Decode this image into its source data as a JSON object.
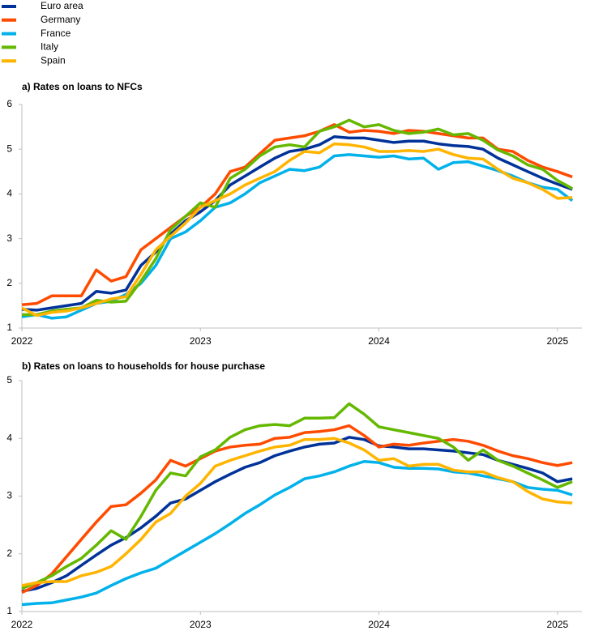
{
  "chart_data": [
    {
      "type": "line",
      "title": "a) Rates on loans to NFCs",
      "x": [
        2022,
        2022.083,
        2022.167,
        2022.25,
        2022.333,
        2022.417,
        2022.5,
        2022.583,
        2022.667,
        2022.75,
        2022.833,
        2022.917,
        2023,
        2023.083,
        2023.167,
        2023.25,
        2023.333,
        2023.417,
        2023.5,
        2023.583,
        2023.667,
        2023.75,
        2023.833,
        2023.917,
        2024,
        2024.083,
        2024.167,
        2024.25,
        2024.333,
        2024.417,
        2024.5,
        2024.583,
        2024.667,
        2024.75,
        2024.833,
        2024.917,
        2025,
        2025.083
      ],
      "xlim": [
        2022,
        2025.137
      ],
      "xticks": [
        2022,
        2023,
        2024,
        2025
      ],
      "ylim": [
        1,
        6
      ],
      "yticks": [
        1,
        2,
        3,
        4,
        5,
        6
      ],
      "series": [
        {
          "name": "Euro area",
          "color": "#003299",
          "values": [
            1.42,
            1.4,
            1.45,
            1.5,
            1.55,
            1.82,
            1.78,
            1.85,
            2.4,
            2.7,
            3.1,
            3.4,
            3.6,
            3.85,
            4.2,
            4.4,
            4.6,
            4.8,
            4.95,
            5.0,
            5.1,
            5.28,
            5.25,
            5.25,
            5.2,
            5.15,
            5.18,
            5.18,
            5.12,
            5.08,
            5.06,
            5.0,
            4.8,
            4.65,
            4.5,
            4.35,
            4.22,
            4.1
          ]
        },
        {
          "name": "Germany",
          "color": "#ff4b00",
          "values": [
            1.52,
            1.55,
            1.72,
            1.72,
            1.72,
            2.3,
            2.05,
            2.15,
            2.75,
            3.0,
            3.25,
            3.5,
            3.7,
            4.0,
            4.5,
            4.6,
            4.9,
            5.2,
            5.25,
            5.3,
            5.4,
            5.55,
            5.38,
            5.42,
            5.4,
            5.35,
            5.42,
            5.4,
            5.35,
            5.3,
            5.25,
            5.25,
            5.0,
            4.95,
            4.75,
            4.6,
            4.5,
            4.38
          ]
        },
        {
          "name": "France",
          "color": "#00b1ea",
          "values": [
            1.25,
            1.3,
            1.22,
            1.25,
            1.4,
            1.55,
            1.6,
            1.75,
            2.0,
            2.4,
            3.0,
            3.15,
            3.4,
            3.7,
            3.8,
            4.0,
            4.25,
            4.4,
            4.55,
            4.52,
            4.6,
            4.85,
            4.88,
            4.85,
            4.82,
            4.85,
            4.78,
            4.8,
            4.55,
            4.7,
            4.72,
            4.62,
            4.52,
            4.4,
            4.25,
            4.15,
            4.1,
            3.85
          ]
        },
        {
          "name": "Italy",
          "color": "#65b800",
          "values": [
            1.3,
            1.3,
            1.38,
            1.42,
            1.45,
            1.62,
            1.58,
            1.6,
            2.05,
            2.55,
            3.2,
            3.5,
            3.8,
            3.7,
            4.35,
            4.55,
            4.85,
            5.05,
            5.1,
            5.05,
            5.4,
            5.5,
            5.65,
            5.5,
            5.55,
            5.42,
            5.35,
            5.38,
            5.45,
            5.32,
            5.35,
            5.2,
            4.98,
            4.85,
            4.65,
            4.55,
            4.3,
            4.12
          ]
        },
        {
          "name": "Spain",
          "color": "#ffb400",
          "values": [
            1.45,
            1.28,
            1.35,
            1.38,
            1.45,
            1.55,
            1.65,
            1.7,
            2.2,
            2.75,
            3.05,
            3.35,
            3.7,
            3.85,
            4.0,
            4.2,
            4.35,
            4.5,
            4.75,
            4.95,
            4.92,
            5.12,
            5.1,
            5.05,
            4.95,
            4.95,
            4.97,
            4.95,
            5.0,
            4.88,
            4.8,
            4.78,
            4.55,
            4.35,
            4.25,
            4.1,
            3.9,
            3.92
          ]
        }
      ]
    },
    {
      "type": "line",
      "title": "b) Rates on loans to households for house purchase",
      "x": [
        2022,
        2022.083,
        2022.167,
        2022.25,
        2022.333,
        2022.417,
        2022.5,
        2022.583,
        2022.667,
        2022.75,
        2022.833,
        2022.917,
        2023,
        2023.083,
        2023.167,
        2023.25,
        2023.333,
        2023.417,
        2023.5,
        2023.583,
        2023.667,
        2023.75,
        2023.833,
        2023.917,
        2024,
        2024.083,
        2024.167,
        2024.25,
        2024.333,
        2024.417,
        2024.5,
        2024.583,
        2024.667,
        2024.75,
        2024.833,
        2024.917,
        2025,
        2025.083
      ],
      "xlim": [
        2022,
        2025.137
      ],
      "xticks": [
        2022,
        2023,
        2024,
        2025
      ],
      "ylim": [
        1,
        5
      ],
      "yticks": [
        1,
        2,
        3,
        4,
        5
      ],
      "series": [
        {
          "color": "#003299",
          "values": [
            1.35,
            1.4,
            1.5,
            1.62,
            1.8,
            1.98,
            2.15,
            2.28,
            2.45,
            2.65,
            2.88,
            2.95,
            3.1,
            3.25,
            3.38,
            3.5,
            3.58,
            3.7,
            3.78,
            3.85,
            3.9,
            3.92,
            4.02,
            3.98,
            3.87,
            3.85,
            3.82,
            3.82,
            3.8,
            3.78,
            3.75,
            3.72,
            3.62,
            3.55,
            3.48,
            3.4,
            3.25,
            3.3
          ]
        },
        {
          "color": "#ff4b00",
          "values": [
            1.33,
            1.45,
            1.65,
            1.95,
            2.25,
            2.55,
            2.82,
            2.85,
            3.05,
            3.28,
            3.62,
            3.52,
            3.65,
            3.78,
            3.85,
            3.88,
            3.9,
            4.0,
            4.02,
            4.1,
            4.12,
            4.15,
            4.22,
            4.05,
            3.85,
            3.9,
            3.88,
            3.92,
            3.95,
            3.98,
            3.95,
            3.88,
            3.78,
            3.7,
            3.65,
            3.58,
            3.53,
            3.58
          ]
        },
        {
          "color": "#00b1ea",
          "values": [
            1.12,
            1.14,
            1.15,
            1.2,
            1.25,
            1.32,
            1.45,
            1.57,
            1.67,
            1.75,
            1.9,
            2.05,
            2.2,
            2.35,
            2.52,
            2.7,
            2.85,
            3.02,
            3.15,
            3.3,
            3.35,
            3.42,
            3.52,
            3.6,
            3.58,
            3.5,
            3.48,
            3.48,
            3.47,
            3.42,
            3.4,
            3.35,
            3.3,
            3.25,
            3.15,
            3.12,
            3.1,
            3.02
          ]
        },
        {
          "color": "#65b800",
          "values": [
            1.4,
            1.5,
            1.62,
            1.78,
            1.92,
            2.15,
            2.4,
            2.25,
            2.65,
            3.1,
            3.4,
            3.35,
            3.68,
            3.8,
            4.02,
            4.15,
            4.22,
            4.24,
            4.22,
            4.35,
            4.35,
            4.36,
            4.6,
            4.42,
            4.2,
            4.15,
            4.1,
            4.05,
            4.0,
            3.85,
            3.62,
            3.8,
            3.62,
            3.52,
            3.4,
            3.28,
            3.15,
            3.25
          ]
        },
        {
          "color": "#ffb400",
          "values": [
            1.45,
            1.5,
            1.52,
            1.52,
            1.62,
            1.68,
            1.78,
            2.0,
            2.25,
            2.55,
            2.7,
            3.0,
            3.22,
            3.52,
            3.62,
            3.7,
            3.78,
            3.85,
            3.88,
            3.98,
            3.98,
            4.0,
            3.92,
            3.8,
            3.62,
            3.65,
            3.52,
            3.55,
            3.55,
            3.45,
            3.42,
            3.42,
            3.32,
            3.25,
            3.08,
            2.95,
            2.9,
            2.88
          ]
        }
      ]
    }
  ]
}
